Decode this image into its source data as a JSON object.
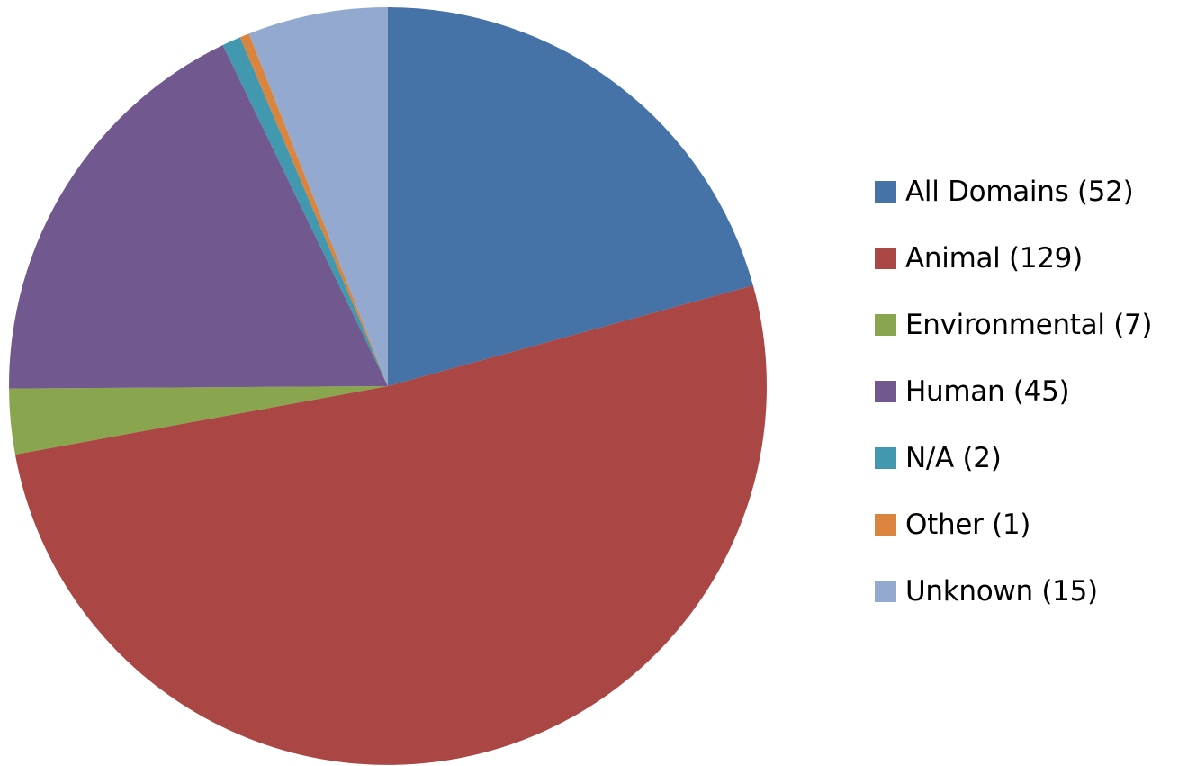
{
  "chart_data": {
    "type": "pie",
    "start_angle_deg": 0,
    "direction": "clockwise",
    "legend_position": "right",
    "slices": [
      {
        "label": "All Domains",
        "legend_text": "All Domains (52)",
        "value": 52,
        "color": "#4572A7"
      },
      {
        "label": "Animal",
        "legend_text": "Animal (129)",
        "value": 129,
        "color": "#AA4643"
      },
      {
        "label": "Environmental",
        "legend_text": "Environmental (7)",
        "value": 7,
        "color": "#89A54E"
      },
      {
        "label": "Human",
        "legend_text": "Human (45)",
        "value": 45,
        "color": "#71588F"
      },
      {
        "label": "N/A",
        "legend_text": "N/A (2)",
        "value": 2,
        "color": "#4198AF"
      },
      {
        "label": "Other",
        "legend_text": "Other (1)",
        "value": 1,
        "color": "#DB843D"
      },
      {
        "label": "Unknown",
        "legend_text": "Unknown (15)",
        "value": 15,
        "color": "#93A9CF"
      }
    ]
  }
}
